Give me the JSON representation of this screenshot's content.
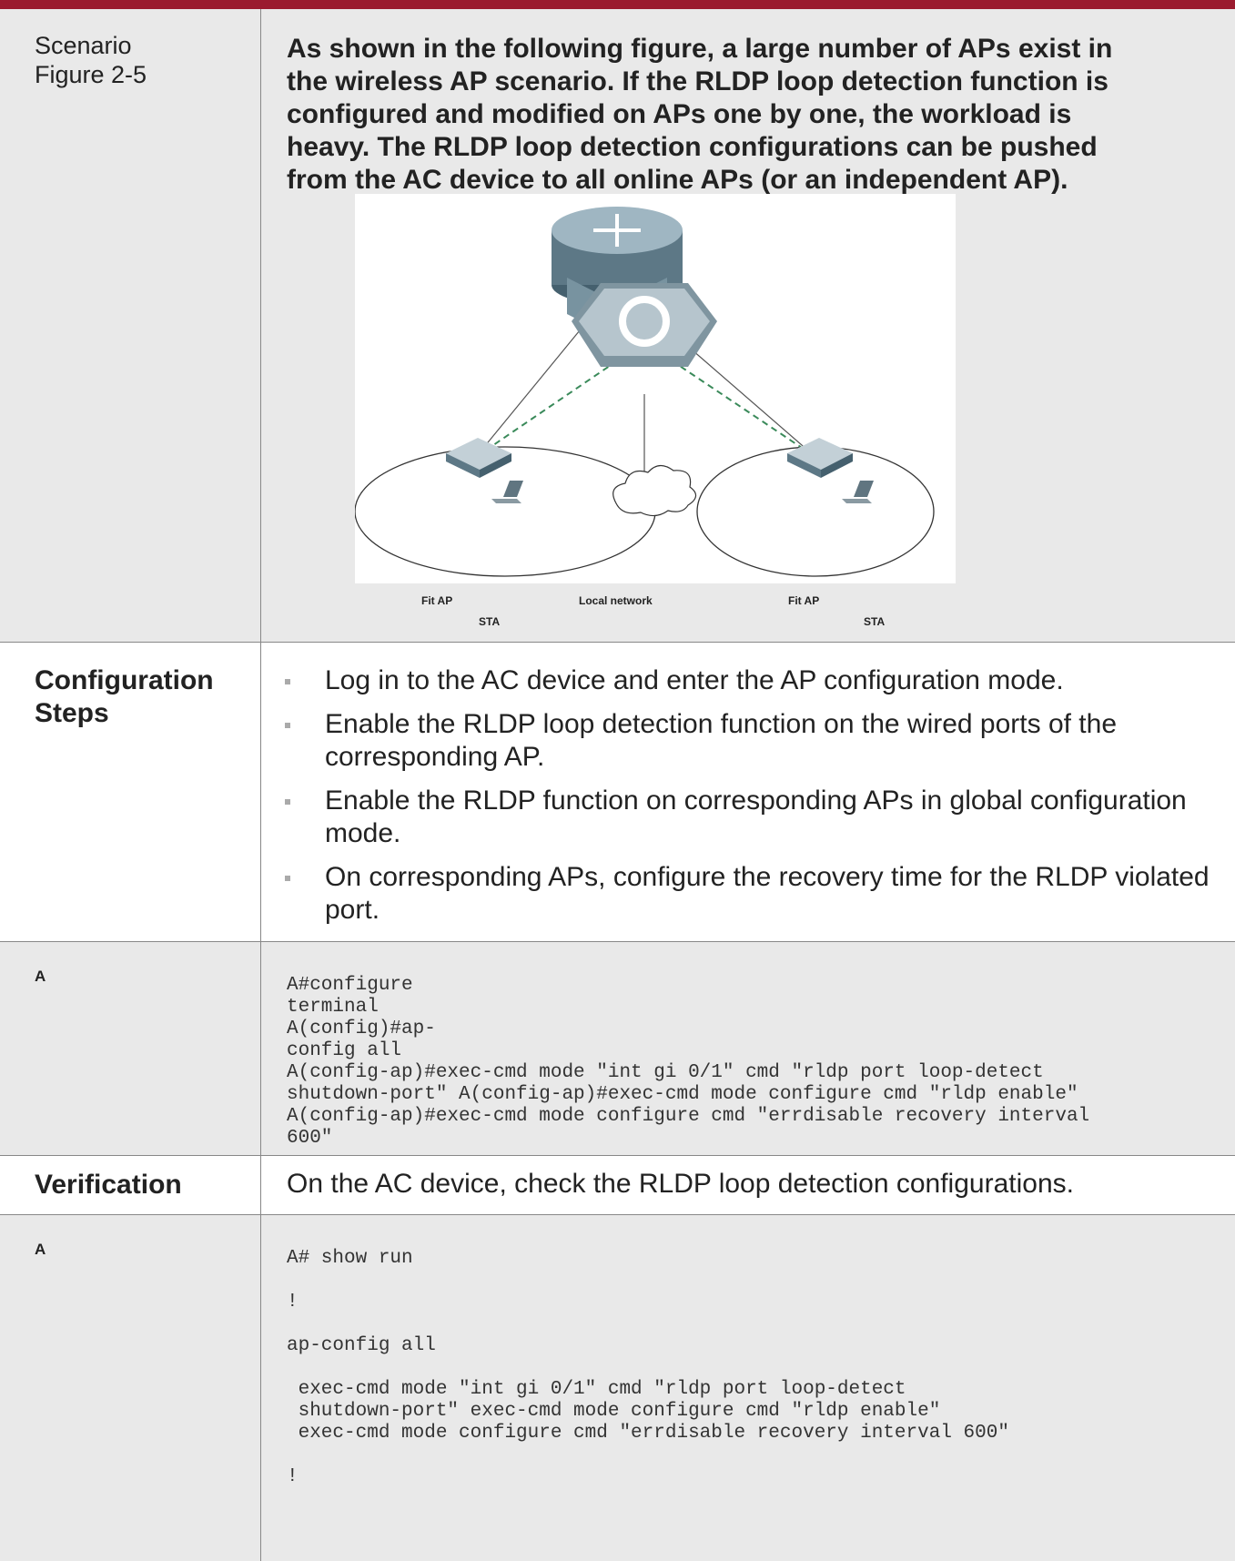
{
  "rows": [
    {
      "label": [
        "Scenario",
        "Figure 2-5"
      ],
      "text": "As shown in the following figure, a large number of APs exist in the wireless AP scenario. If the RLDP loop detection function is configured and modified on APs one by one, the workload is heavy. The RLDP loop detection configurations can be pushed from the AC device to all online APs (or an independent AP).",
      "figure": {
        "labels": [
          "Fit AP",
          "Local network",
          "Fit AP",
          "STA",
          "STA"
        ]
      }
    },
    {
      "label": [
        "Configuration",
        "Steps"
      ],
      "items": [
        "Log in to the AC device and enter the AP configuration mode.",
        "Enable the RLDP loop detection function on the wired ports of the corresponding AP.",
        "Enable the RLDP function on corresponding APs in global configuration mode.",
        "On corresponding APs, configure the recovery time for the RLDP violated port."
      ]
    },
    {
      "label": "A",
      "code": [
        "A#configure",
        "terminal",
        "A(config)#ap-",
        "config all",
        "A(config-ap)#exec-cmd mode \"int gi 0/1\" cmd \"rldp port loop-detect",
        "shutdown-port\" A(config-ap)#exec-cmd mode configure cmd \"rldp enable\"",
        "A(config-ap)#exec-cmd mode configure cmd \"errdisable recovery interval",
        "600\""
      ]
    },
    {
      "label": "Verification",
      "text": "On the AC device, check the RLDP loop detection configurations."
    },
    {
      "label": "A",
      "code": [
        [
          "A# show run"
        ],
        [
          "!"
        ],
        [
          "ap-config all"
        ],
        [
          " exec-cmd mode \"int gi 0/1\" cmd \"rldp port loop-detect",
          " shutdown-port\" exec-cmd mode configure cmd \"rldp enable\"",
          " exec-cmd mode configure cmd \"errdisable recovery interval 600\""
        ],
        [
          "!"
        ]
      ]
    }
  ]
}
